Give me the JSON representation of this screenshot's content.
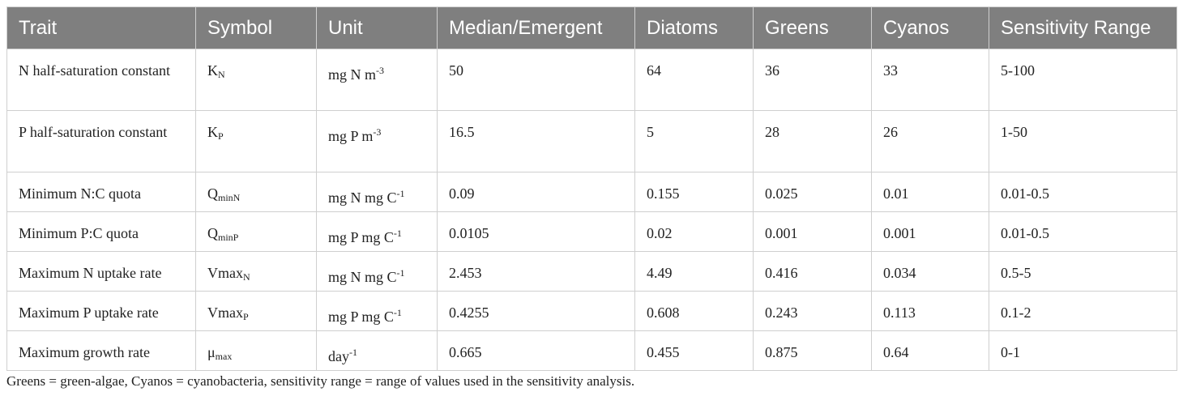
{
  "table": {
    "header": [
      "Trait",
      "Symbol",
      "Unit",
      "Median/Emergent",
      "Diatoms",
      "Greens",
      "Cyanos",
      "Sensitivity Range"
    ],
    "rows": [
      [
        "N half-saturation constant",
        {
          "base": "K",
          "sub": "N"
        },
        {
          "base": "mg N m",
          "sup": "-3"
        },
        "50",
        "64",
        "36",
        "33",
        "5-100"
      ],
      [
        "P half-saturation constant",
        {
          "base": "K",
          "sub": "P"
        },
        {
          "base": "mg P m",
          "sup": "-3"
        },
        "16.5",
        "5",
        "28",
        "26",
        "1-50"
      ],
      [
        "Minimum N:C quota",
        {
          "base": "Q",
          "sub": "minN"
        },
        {
          "base": "mg N mg C",
          "sup": "-1"
        },
        "0.09",
        "0.155",
        "0.025",
        "0.01",
        "0.01-0.5"
      ],
      [
        "Minimum P:C quota",
        {
          "base": "Q",
          "sub": "minP"
        },
        {
          "base": "mg P mg C",
          "sup": "-1"
        },
        "0.0105",
        "0.02",
        "0.001",
        "0.001",
        "0.01-0.5"
      ],
      [
        "Maximum N uptake rate",
        {
          "base": "Vmax",
          "sub": "N"
        },
        {
          "base": "mg N mg C",
          "sup": "-1"
        },
        "2.453",
        "4.49",
        "0.416",
        "0.034",
        "0.5-5"
      ],
      [
        "Maximum P uptake rate",
        {
          "base": "Vmax",
          "sub": "P"
        },
        {
          "base": "mg P mg C",
          "sup": "-1"
        },
        "0.4255",
        "0.608",
        "0.243",
        "0.113",
        "0.1-2"
      ],
      [
        "Maximum growth rate",
        {
          "base": "μ",
          "sub": "max"
        },
        {
          "base": "day",
          "sup": "-1"
        },
        "0.665",
        "0.455",
        "0.875",
        "0.64",
        "0-1"
      ]
    ]
  },
  "footnote": "Greens = green-algae, Cyanos = cyanobacteria, sensitivity range = range of values used in the sensitivity analysis."
}
